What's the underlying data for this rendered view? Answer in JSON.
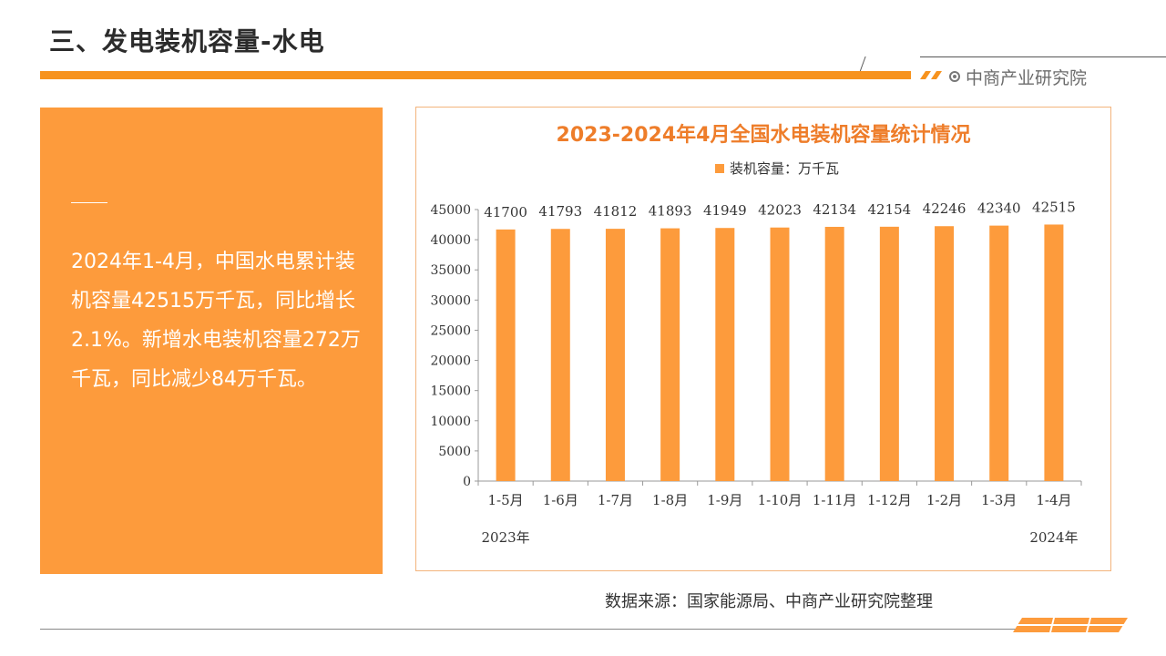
{
  "header": {
    "title": "三、发电装机容量-水电",
    "brand": "中商产业研究院"
  },
  "side_panel": {
    "text": "2024年1-4月，中国水电累计装机容量42515万千瓦，同比增长2.1%。新增水电装机容量272万千瓦，同比减少84万千瓦。"
  },
  "chart_data": {
    "type": "bar",
    "title": "2023-2024年4月全国水电装机容量统计情况",
    "legend": "装机容量：万千瓦",
    "categories": [
      "1-5月",
      "1-6月",
      "1-7月",
      "1-8月",
      "1-9月",
      "1-10月",
      "1-11月",
      "1-12月",
      "1-2月",
      "1-3月",
      "1-4月"
    ],
    "values": [
      41700,
      41793,
      41812,
      41893,
      41949,
      42023,
      42134,
      42154,
      42246,
      42340,
      42515
    ],
    "year_labels": [
      "2023年",
      "2024年"
    ],
    "ylim": [
      0,
      45000
    ],
    "yticks": [
      0,
      5000,
      10000,
      15000,
      20000,
      25000,
      30000,
      35000,
      40000,
      45000
    ],
    "bar_color": "#fd9b3c",
    "legend_placement": "top-center",
    "grid": false
  },
  "footer": {
    "source": "数据来源：国家能源局、中商产业研究院整理"
  },
  "colors": {
    "accent": "#f7931e",
    "panel": "#fd9b3c",
    "title": "#ee7d2a"
  }
}
